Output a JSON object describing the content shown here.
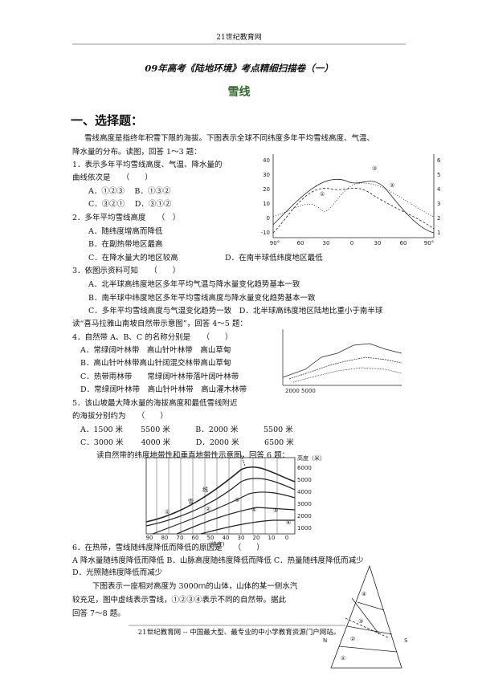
{
  "header": {
    "title": "21世纪教育网"
  },
  "title": "09年高考《陆地环境》考点精细扫描卷（一）",
  "subtitle": "雪线",
  "section": "一、选择题：",
  "lines": [
    "雪线高度是指终年积雪下限的海拔。下图表示全球不同纬度多年平均雪线高度、气温、",
    "降水量的分布。读图，回答 1～3 题：",
    "1．表示多年平均雪线高度、气温、降水量的",
    "曲线依次是　　（　　）",
    "A．①②③　 B．①③②",
    "C．③②①　 D．③①②",
    "2．多年平均雪线高度　　（　）",
    "A．随纬度增高而降低",
    "B．在副热带地区最高",
    "C．在降水量大的地区较高",
    "D．在南半球低纬度地区最低",
    "3．依图示资料可知　　（　　）",
    "A．北半球高纬度地区多年平均气温与降水量变化趋势基本一致",
    "B．南半球中纬度地区多年平均雪线高度与降水量变化趋势基本一致",
    "C．多年平均雪线高度与气温变化趋势一致　D．北半球高纬度地区陆地比重小于南半球",
    "读“喜马拉雅山南坡自然带示意图”，回答 4～5 题：",
    "4．自然带 A、B、C 的名称分别是　　（　　）",
    "A．常绿阔叶林带　高山针叶林带　高山草甸",
    "B．高山针叶林带高山针阔混交林带高山草甸",
    "C．热带雨林带　　常绿阔叶林带落叶阔叶林带",
    "D．常绿阔叶林带　高山针叶林带　高山灌木林带",
    "5．该山坡最大降水量的海拔高度和最低雪线附近",
    "的海拔分别约为　　（　　）",
    "A．1500 米　　 5500 米　　　 B．2000 米　　　 5500 米",
    "C．3000 米　　 4000 米　　　 D．2000 米　　　 6500 米",
    "读自然带的纬度地带性和垂直地带性示意图，回答 6 题：",
    "6．在热带，雪线随纬度降低而降低的原因是　　（　　）",
    "A 降水量随纬度降低而降低 B．山脉高度随纬度降低而降低 C．热量随纬度降低而减少",
    "D．光照随纬度降低而减少",
    "下图表示一座相对高度为 3000ｍ的山体，山体的某一侧水汽",
    "较充足，图中虚线表示雪线，①②③④表示不同的自然带。据此",
    "回答 7～8 题。"
  ],
  "figure1": {
    "curves": [
      "①",
      "②",
      "③"
    ],
    "left_ticks": [
      "40",
      "30",
      "20",
      "10",
      "0",
      "-10"
    ],
    "right_ticks": [
      "6",
      "5",
      "4",
      "3",
      "2",
      "1"
    ],
    "x_ticks": [
      "90°",
      "60",
      "30",
      "0",
      "30",
      "60",
      "90°"
    ]
  },
  "figure2": {
    "x_label": "2000 5000"
  },
  "figure3": {
    "y_label": "高度（米）",
    "y_ticks": [
      "6000",
      "5000",
      "4000",
      "3000",
      "2000",
      "1000"
    ],
    "x_ticks": [
      "90",
      "80",
      "70",
      "60",
      "50",
      "40",
      "30",
      "20",
      "10",
      "0"
    ],
    "x_label": "(纬度)",
    "snow": [
      "雪",
      "线"
    ],
    "zones": [
      "①",
      "②",
      "③",
      "④",
      "⑤",
      "⑥"
    ]
  },
  "figure4": {
    "zones": [
      "④",
      "③",
      "②",
      "①"
    ],
    "left": "N",
    "right": "S"
  },
  "footer": "21世纪教育网 -- 中国最大型、最专业的中小学教育资源门户网站。"
}
